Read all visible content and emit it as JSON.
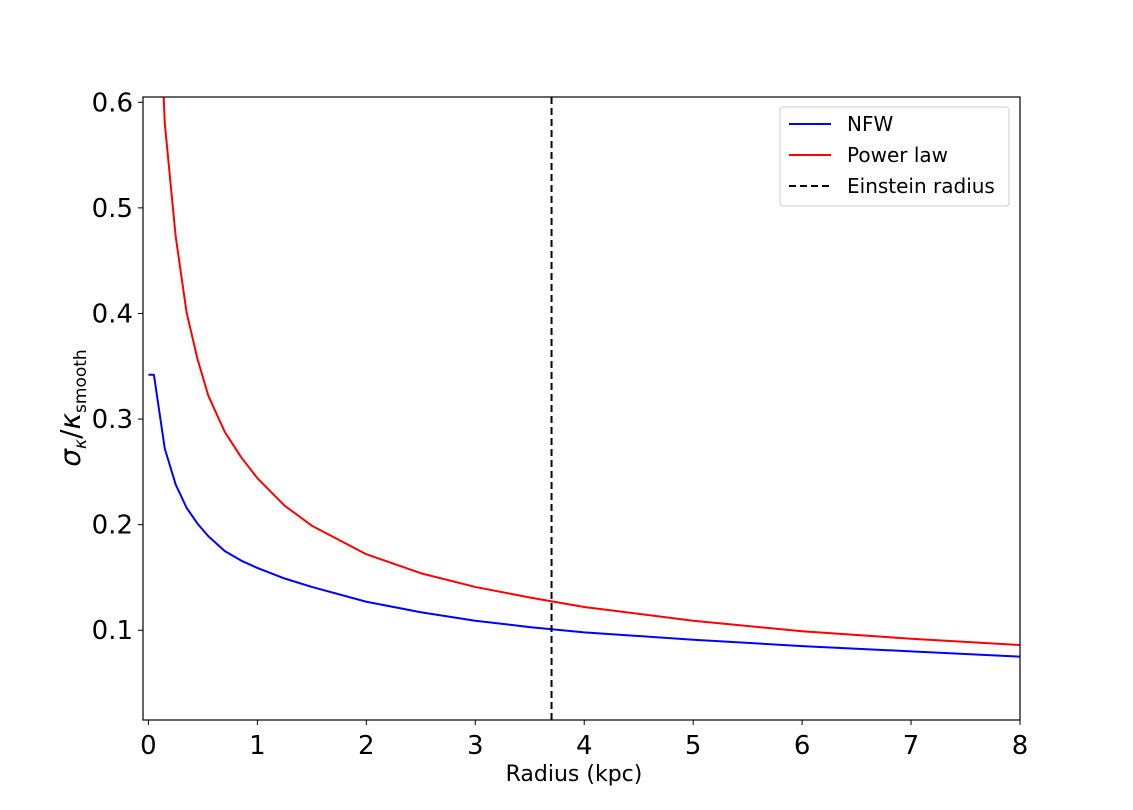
{
  "chart_data": {
    "type": "line",
    "title": "",
    "xlabel": "Radius (kpc)",
    "ylabel": {
      "sigma": "σ",
      "sigma_sub": "κ",
      "slash": "/",
      "kappa": "κ",
      "kappa_sub": "smooth"
    },
    "xlim": [
      -0.05,
      8.0
    ],
    "ylim": [
      0.015,
      0.605
    ],
    "xticks": [
      0,
      1,
      2,
      3,
      4,
      5,
      6,
      7,
      8
    ],
    "xtick_labels": [
      "0",
      "1",
      "2",
      "3",
      "4",
      "5",
      "6",
      "7",
      "8"
    ],
    "yticks": [
      0.1,
      0.2,
      0.3,
      0.4,
      0.5,
      0.6
    ],
    "ytick_labels": [
      "0.1",
      "0.2",
      "0.3",
      "0.4",
      "0.5",
      "0.6"
    ],
    "grid": false,
    "legend_position": "top-right",
    "series": [
      {
        "name": "NFW",
        "color": "#0000ff",
        "style": "solid",
        "x": [
          0,
          0.05,
          0.15,
          0.25,
          0.35,
          0.45,
          0.55,
          0.7,
          0.85,
          1.0,
          1.25,
          1.5,
          2.0,
          2.5,
          3.0,
          3.5,
          4.0,
          5.0,
          6.0,
          7.0,
          8.0
        ],
        "y": [
          0.342,
          0.342,
          0.272,
          0.238,
          0.216,
          0.201,
          0.189,
          0.175,
          0.166,
          0.159,
          0.149,
          0.141,
          0.127,
          0.117,
          0.109,
          0.103,
          0.098,
          0.091,
          0.085,
          0.08,
          0.075
        ]
      },
      {
        "name": "Power law",
        "color": "#ff0000",
        "style": "solid",
        "x": [
          0.14,
          0.15,
          0.25,
          0.35,
          0.45,
          0.55,
          0.7,
          0.85,
          1.0,
          1.25,
          1.5,
          2.0,
          2.5,
          3.0,
          3.5,
          4.0,
          5.0,
          6.0,
          7.0,
          8.0
        ],
        "y": [
          0.605,
          0.58,
          0.473,
          0.401,
          0.357,
          0.322,
          0.288,
          0.264,
          0.244,
          0.218,
          0.199,
          0.172,
          0.154,
          0.141,
          0.131,
          0.122,
          0.109,
          0.099,
          0.092,
          0.086
        ]
      }
    ],
    "vlines": [
      {
        "name": "Einstein radius",
        "x": 3.7,
        "color": "#000000",
        "style": "dashed"
      }
    ]
  }
}
